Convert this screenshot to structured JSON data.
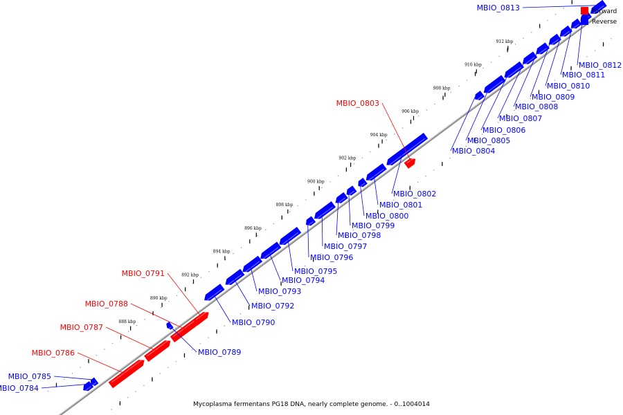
{
  "caption": "Mycoplasma fermentans PG18 DNA, nearly complete genome. - 0..1004014",
  "legend": [
    {
      "label": "Forward",
      "color": "#ff0000"
    },
    {
      "label": "Reverse",
      "color": "#0000ff"
    }
  ],
  "colors": {
    "forward": "#ff0000",
    "reverse": "#0000ff",
    "axis": "#888888",
    "tick": "#000000",
    "dot": "#888888"
  },
  "kbp_ticks": [
    "888 kbp",
    "890 kbp",
    "892 kbp",
    "894 kbp",
    "896 kbp",
    "898 kbp",
    "900 kbp",
    "902 kbp",
    "904 kbp",
    "906 kbp",
    "908 kbp",
    "910 kbp",
    "912 kbp"
  ],
  "genes": [
    {
      "name": "MBIO_0784",
      "strand": "reverse"
    },
    {
      "name": "MBIO_0785",
      "strand": "reverse"
    },
    {
      "name": "MBIO_0786",
      "strand": "forward"
    },
    {
      "name": "MBIO_0787",
      "strand": "forward"
    },
    {
      "name": "MBIO_0788",
      "strand": "forward"
    },
    {
      "name": "MBIO_0789",
      "strand": "reverse"
    },
    {
      "name": "MBIO_0790",
      "strand": "reverse"
    },
    {
      "name": "MBIO_0791",
      "strand": "forward"
    },
    {
      "name": "MBIO_0792",
      "strand": "reverse"
    },
    {
      "name": "MBIO_0793",
      "strand": "reverse"
    },
    {
      "name": "MBIO_0794",
      "strand": "reverse"
    },
    {
      "name": "MBIO_0795",
      "strand": "reverse"
    },
    {
      "name": "MBIO_0796",
      "strand": "reverse"
    },
    {
      "name": "MBIO_0797",
      "strand": "reverse"
    },
    {
      "name": "MBIO_0798",
      "strand": "reverse"
    },
    {
      "name": "MBIO_0799",
      "strand": "reverse"
    },
    {
      "name": "MBIO_0800",
      "strand": "reverse"
    },
    {
      "name": "MBIO_0801",
      "strand": "reverse"
    },
    {
      "name": "MBIO_0802",
      "strand": "reverse"
    },
    {
      "name": "MBIO_0803",
      "strand": "forward"
    },
    {
      "name": "MBIO_0804",
      "strand": "reverse"
    },
    {
      "name": "MBIO_0805",
      "strand": "reverse"
    },
    {
      "name": "MBIO_0806",
      "strand": "reverse"
    },
    {
      "name": "MBIO_0807",
      "strand": "reverse"
    },
    {
      "name": "MBIO_0808",
      "strand": "reverse"
    },
    {
      "name": "MBIO_0809",
      "strand": "reverse"
    },
    {
      "name": "MBIO_0810",
      "strand": "reverse"
    },
    {
      "name": "MBIO_0811",
      "strand": "reverse"
    },
    {
      "name": "MBIO_0812",
      "strand": "reverse"
    },
    {
      "name": "MBIO_0813",
      "strand": "reverse"
    }
  ]
}
